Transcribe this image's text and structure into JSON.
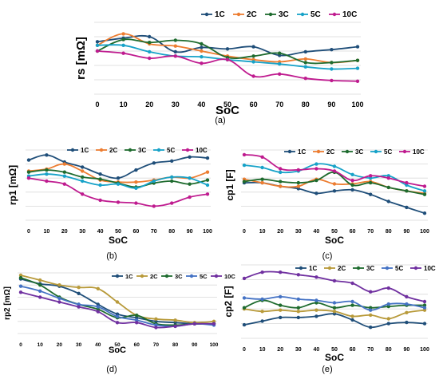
{
  "figure": {
    "panel_labels": [
      "(a)",
      "(b)",
      "(c)",
      "(d)",
      "(e)"
    ]
  },
  "chart_data": [
    {
      "type": "line",
      "panel": "(a)",
      "xlabel": "SoC",
      "ylabel": "rs [mΩ]",
      "x": [
        0,
        10,
        20,
        30,
        40,
        50,
        60,
        70,
        80,
        90,
        100
      ],
      "grid": true,
      "legend": "top-right",
      "series": [
        {
          "name": "1C",
          "color": "#1F4E79",
          "values": [
            7.3,
            7.8,
            8.0,
            5.9,
            6.5,
            6.3,
            6.6,
            5.4,
            5.9,
            6.2,
            6.6
          ]
        },
        {
          "name": "2C",
          "color": "#ED7D31",
          "values": [
            6.8,
            8.4,
            7.0,
            6.7,
            6.0,
            5.3,
            4.8,
            4.5,
            4.9,
            4.4,
            4.7
          ]
        },
        {
          "name": "3C",
          "color": "#1E6B2E",
          "values": [
            6.0,
            7.6,
            7.2,
            7.5,
            7.0,
            5.1,
            5.3,
            5.7,
            4.4,
            4.4,
            4.7
          ]
        },
        {
          "name": "5C",
          "color": "#17A2C8",
          "values": [
            6.8,
            6.8,
            5.9,
            5.3,
            5.2,
            4.8,
            4.5,
            4.2,
            3.8,
            3.5,
            3.6
          ]
        },
        {
          "name": "10C",
          "color": "#BF1B8F",
          "values": [
            6.0,
            5.7,
            5.0,
            5.3,
            4.3,
            4.8,
            2.5,
            2.8,
            2.2,
            1.9,
            1.8
          ]
        }
      ]
    },
    {
      "type": "line",
      "panel": "(b)",
      "xlabel": "SoC",
      "ylabel": "rp1 [mΩ]",
      "x": [
        0,
        10,
        20,
        30,
        40,
        50,
        60,
        70,
        80,
        90,
        100
      ],
      "grid": true,
      "legend": "top",
      "series": [
        {
          "name": "1C",
          "color": "#1F4E79",
          "values": [
            9.0,
            9.5,
            8.8,
            8.3,
            7.6,
            7.2,
            8.0,
            8.7,
            8.9,
            9.3,
            9.2
          ]
        },
        {
          "name": "2C",
          "color": "#ED7D31",
          "values": [
            7.9,
            8.1,
            8.6,
            7.9,
            7.0,
            6.8,
            6.8,
            7.0,
            7.3,
            7.2,
            7.8
          ]
        },
        {
          "name": "3C",
          "color": "#1E6B2E",
          "values": [
            7.8,
            8.0,
            7.8,
            7.3,
            7.1,
            6.7,
            6.3,
            6.7,
            6.9,
            6.6,
            7.0
          ]
        },
        {
          "name": "5C",
          "color": "#17A2C8",
          "values": [
            7.4,
            7.6,
            7.4,
            6.9,
            6.5,
            6.6,
            6.2,
            6.9,
            7.3,
            7.2,
            6.5
          ]
        },
        {
          "name": "10C",
          "color": "#BF1B8F",
          "values": [
            7.2,
            6.9,
            6.6,
            5.6,
            5.0,
            4.8,
            4.7,
            4.4,
            4.7,
            5.3,
            5.6
          ]
        }
      ]
    },
    {
      "type": "line",
      "panel": "(c)",
      "xlabel": "SoC",
      "ylabel": "cp1 [F]",
      "x": [
        0,
        10,
        20,
        30,
        40,
        50,
        60,
        70,
        80,
        90,
        100
      ],
      "grid": true,
      "legend": "top",
      "series": [
        {
          "name": "1C",
          "color": "#1F4E79",
          "values": [
            6.7,
            6.7,
            6.4,
            6.2,
            5.8,
            6.0,
            6.1,
            5.7,
            5.1,
            4.6,
            4.1
          ]
        },
        {
          "name": "2C",
          "color": "#ED7D31",
          "values": [
            7.0,
            6.7,
            6.4,
            6.4,
            7.0,
            6.6,
            6.6,
            6.8,
            6.3,
            6.0,
            5.8
          ]
        },
        {
          "name": "3C",
          "color": "#1E6B2E",
          "values": [
            6.8,
            7.0,
            6.8,
            6.7,
            6.9,
            7.6,
            6.5,
            6.7,
            6.3,
            6.0,
            5.7
          ]
        },
        {
          "name": "5C",
          "color": "#17A2C8",
          "values": [
            8.2,
            8.0,
            7.6,
            7.7,
            8.3,
            8.1,
            7.4,
            7.1,
            7.3,
            6.5,
            6.0
          ]
        },
        {
          "name": "10C",
          "color": "#BF1B8F",
          "values": [
            9.1,
            8.9,
            7.9,
            7.8,
            7.9,
            7.7,
            6.9,
            7.3,
            7.1,
            6.7,
            6.4
          ]
        }
      ]
    },
    {
      "type": "line",
      "panel": "(d)",
      "xlabel": "SoC",
      "ylabel": "rp2 [mΩ]",
      "x": [
        0,
        10,
        20,
        30,
        40,
        50,
        60,
        70,
        80,
        90,
        100
      ],
      "grid": true,
      "legend": "top-right",
      "series": [
        {
          "name": "1C",
          "color": "#1F4E79",
          "values": [
            8.5,
            8.1,
            7.9,
            7.3,
            6.4,
            5.6,
            5.3,
            5.0,
            4.9,
            4.8,
            4.8
          ]
        },
        {
          "name": "2C",
          "color": "#B89A3A",
          "values": [
            8.8,
            8.4,
            8.0,
            7.8,
            7.7,
            6.6,
            5.5,
            5.2,
            5.1,
            4.9,
            5.0
          ]
        },
        {
          "name": "3C",
          "color": "#1E6B2E",
          "values": [
            8.6,
            8.0,
            7.0,
            6.4,
            6.0,
            5.3,
            5.5,
            4.8,
            4.7,
            4.8,
            4.8
          ]
        },
        {
          "name": "5C",
          "color": "#4472C4",
          "values": [
            7.9,
            7.5,
            6.9,
            6.4,
            6.2,
            5.4,
            5.1,
            4.7,
            4.6,
            4.8,
            4.7
          ]
        },
        {
          "name": "10C",
          "color": "#7030A0",
          "values": [
            7.4,
            7.0,
            6.6,
            6.2,
            5.8,
            4.9,
            4.9,
            4.5,
            4.6,
            4.8,
            4.8
          ]
        }
      ]
    },
    {
      "type": "line",
      "panel": "(e)",
      "xlabel": "SoC",
      "ylabel": "cp2 [F]",
      "x": [
        0,
        10,
        20,
        30,
        40,
        50,
        60,
        70,
        80,
        90,
        100
      ],
      "grid": true,
      "legend": "top",
      "series": [
        {
          "name": "1C",
          "color": "#1F4E79",
          "values": [
            4.6,
            4.9,
            5.2,
            5.2,
            5.3,
            5.5,
            5.0,
            4.4,
            4.7,
            4.8,
            4.7
          ]
        },
        {
          "name": "2C",
          "color": "#B89A3A",
          "values": [
            5.9,
            5.7,
            5.8,
            5.7,
            5.8,
            5.7,
            5.3,
            5.4,
            5.1,
            5.6,
            5.8
          ]
        },
        {
          "name": "3C",
          "color": "#1E6B2E",
          "values": [
            6.0,
            6.6,
            6.2,
            6.0,
            6.4,
            6.0,
            6.2,
            6.0,
            6.1,
            6.2,
            6.2
          ]
        },
        {
          "name": "5C",
          "color": "#4472C4",
          "values": [
            6.8,
            6.7,
            6.9,
            6.7,
            6.6,
            6.4,
            6.5,
            5.8,
            6.3,
            6.3,
            6.0
          ]
        },
        {
          "name": "10C",
          "color": "#7030A0",
          "values": [
            8.4,
            8.9,
            8.9,
            8.7,
            8.5,
            8.2,
            8.0,
            7.3,
            7.6,
            6.9,
            6.5
          ]
        }
      ]
    }
  ]
}
